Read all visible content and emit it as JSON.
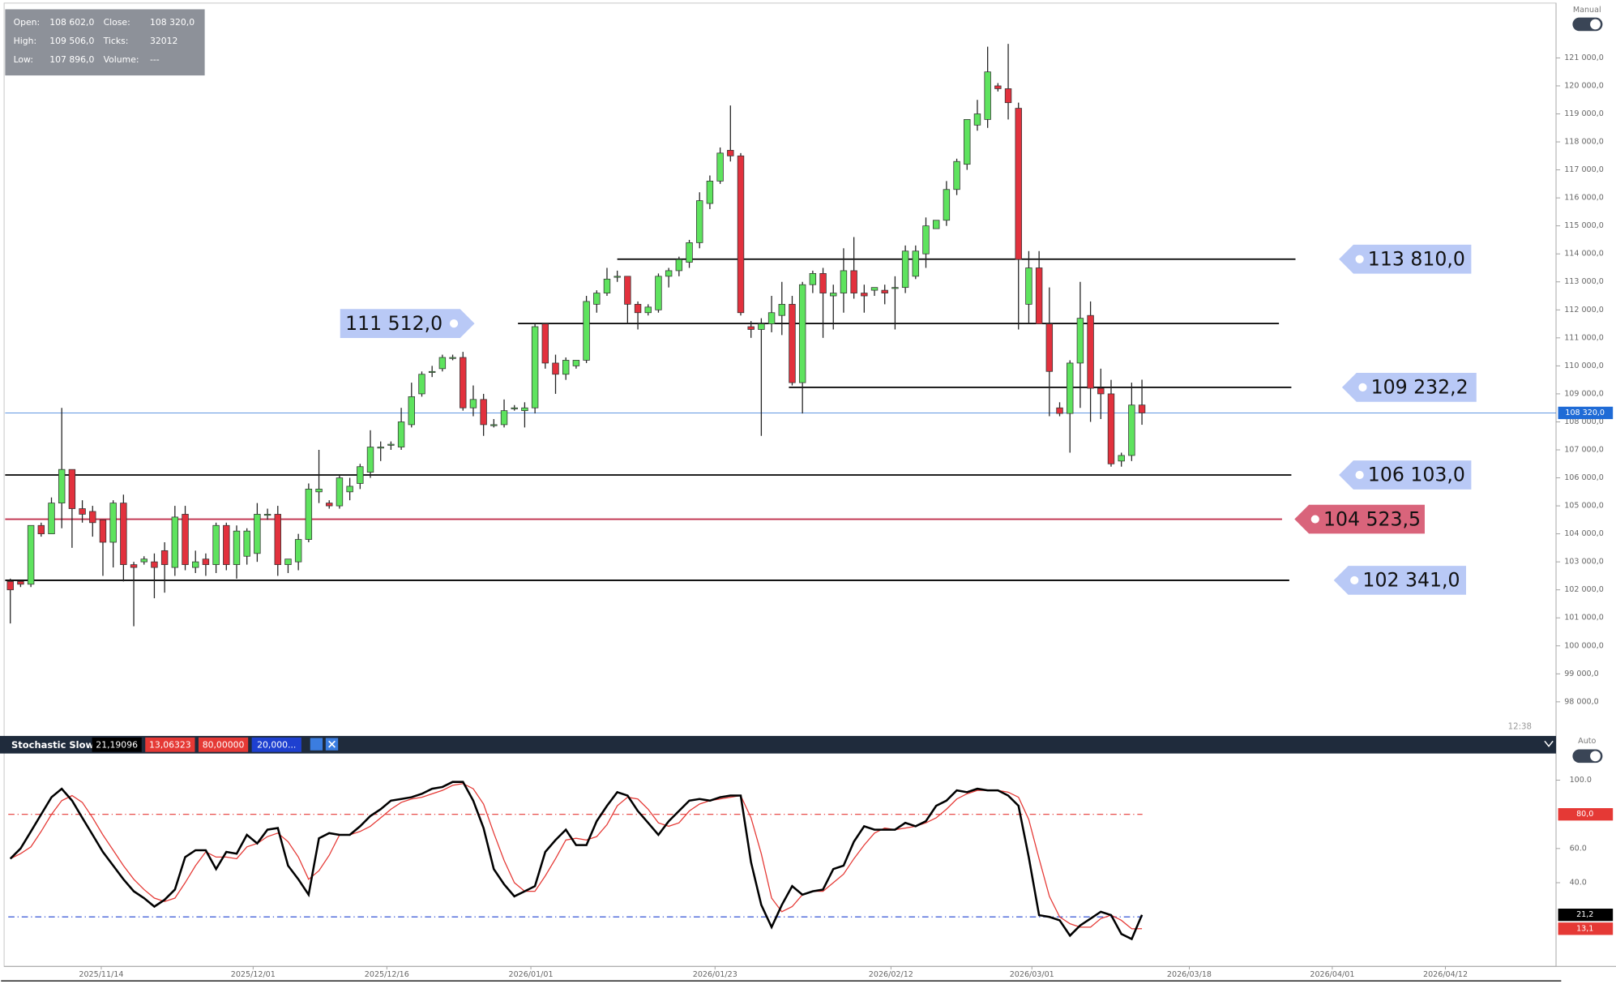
{
  "ui": {
    "manual": "Manual",
    "auto": "Auto",
    "time": "12:38"
  },
  "info": [
    [
      {
        "label": "Open:",
        "value": "108 602,0"
      },
      {
        "label": "Close:",
        "value": "108 320,0"
      }
    ],
    [
      {
        "label": "High:",
        "value": "109 506,0"
      },
      {
        "label": "Ticks:",
        "value": "32012"
      }
    ],
    [
      {
        "label": "Low:",
        "value": "107 896,0"
      },
      {
        "label": "Volume:",
        "value": "---"
      }
    ]
  ],
  "chart_data": [
    {
      "type": "candlestick",
      "up_color": "#5ee35e",
      "down_color": "#e2313d",
      "open": [
        102300,
        102300,
        102200,
        104300,
        104000,
        105100,
        106300,
        104900,
        104800,
        104500,
        103700,
        105100,
        102900,
        103000,
        103000,
        103400,
        102800,
        104700,
        102800,
        103100,
        102900,
        104300,
        102900,
        103200,
        103300,
        104700,
        104700,
        102900,
        103000,
        103800,
        105500,
        105100,
        105000,
        105500,
        105800,
        106200,
        107100,
        107200,
        107100,
        107900,
        109000,
        109800,
        109900,
        110300,
        110300,
        108500,
        108800,
        107900,
        107900,
        108500,
        108400,
        108500,
        111500,
        110100,
        109700,
        110000,
        110200,
        112200,
        112600,
        113200,
        113200,
        112200,
        111900,
        112000,
        113200,
        113400,
        113700,
        114400,
        115800,
        116600,
        117700,
        117500,
        111400,
        111300,
        111500,
        111800,
        112200,
        109400,
        112900,
        113300,
        112500,
        112600,
        113400,
        112600,
        112700,
        112700,
        112800,
        112800,
        113200,
        114000,
        114900,
        115200,
        116300,
        117200,
        118600,
        118800,
        120000,
        119900,
        119200,
        112200,
        113500,
        111500,
        108500,
        108300,
        110100,
        111800,
        109200,
        109000,
        106600,
        106800,
        108602
      ],
      "high": [
        102400,
        102300,
        104300,
        104400,
        105300,
        108500,
        106300,
        105200,
        105000,
        104500,
        105200,
        105400,
        103000,
        103200,
        103300,
        103700,
        105000,
        105000,
        103400,
        103300,
        104400,
        104400,
        104300,
        104200,
        105100,
        104900,
        105000,
        103100,
        104000,
        105800,
        107000,
        105200,
        106100,
        106000,
        106500,
        107700,
        107300,
        107300,
        108500,
        109400,
        109800,
        110000,
        110400,
        110400,
        110500,
        109300,
        109000,
        108100,
        108800,
        108600,
        108700,
        111500,
        111500,
        110400,
        110300,
        110200,
        112500,
        112700,
        113500,
        113400,
        113200,
        112300,
        112200,
        113300,
        113500,
        113900,
        114500,
        116200,
        116800,
        117800,
        119300,
        117600,
        111600,
        111700,
        112500,
        113000,
        112500,
        113000,
        113400,
        113500,
        112900,
        114200,
        114600,
        112900,
        112800,
        112900,
        113200,
        114300,
        114300,
        115300,
        115200,
        116600,
        117400,
        118800,
        119500,
        121400,
        120100,
        121500,
        119400,
        114100,
        114100,
        112800,
        108700,
        110200,
        113000,
        112300,
        109900,
        109500,
        106900,
        109400,
        109506
      ],
      "low": [
        100800,
        102100,
        102100,
        103900,
        104000,
        104200,
        103500,
        104400,
        103900,
        102500,
        102800,
        102300,
        100700,
        102900,
        101700,
        101900,
        102500,
        102700,
        102600,
        102500,
        102600,
        102700,
        102400,
        102900,
        103000,
        104500,
        102500,
        102600,
        102700,
        103700,
        105100,
        104900,
        104900,
        105200,
        105600,
        106000,
        106600,
        107000,
        107000,
        107800,
        108900,
        109600,
        109800,
        110200,
        108400,
        108200,
        107500,
        107800,
        107800,
        108400,
        107800,
        108300,
        109900,
        109000,
        109500,
        109900,
        110100,
        111900,
        112500,
        113000,
        111500,
        111300,
        111800,
        111900,
        112800,
        113200,
        113500,
        114200,
        115600,
        116500,
        117300,
        111800,
        111000,
        107500,
        111200,
        111100,
        109300,
        108300,
        112600,
        111000,
        111300,
        111900,
        112400,
        111900,
        112500,
        112200,
        111300,
        112600,
        113100,
        113500,
        114900,
        115000,
        116100,
        117000,
        118400,
        118500,
        119800,
        118800,
        111300,
        111500,
        111500,
        108200,
        108200,
        106900,
        108500,
        108000,
        108100,
        106400,
        106400,
        106600,
        107896
      ],
      "close": [
        102000,
        102200,
        104300,
        104000,
        105100,
        106300,
        104900,
        104700,
        104400,
        103700,
        105100,
        102900,
        102800,
        103100,
        102800,
        102900,
        104600,
        102900,
        103000,
        102900,
        104300,
        102900,
        104100,
        104100,
        104700,
        104700,
        102900,
        103100,
        103800,
        105600,
        105600,
        105000,
        106000,
        105700,
        106400,
        107100,
        107100,
        107200,
        108000,
        108900,
        109700,
        109800,
        110300,
        110300,
        108500,
        108800,
        107900,
        107900,
        108400,
        108500,
        108500,
        111400,
        110100,
        109700,
        110200,
        110200,
        112300,
        112600,
        113100,
        113200,
        112200,
        111900,
        112100,
        113200,
        113400,
        113800,
        114400,
        115900,
        116600,
        117600,
        117500,
        111900,
        111300,
        111500,
        111900,
        112200,
        109400,
        112900,
        113300,
        112600,
        112600,
        113400,
        112600,
        112500,
        112800,
        112600,
        112800,
        114100,
        114100,
        115000,
        115200,
        116300,
        117300,
        118800,
        119000,
        120500,
        119900,
        119400,
        113800,
        113500,
        111500,
        109800,
        108300,
        110100,
        111700,
        109200,
        109000,
        106500,
        106800,
        108600,
        108320
      ],
      "xlim": [
        -0.5,
        150.25
      ],
      "xticks": [
        {
          "value": 8.84,
          "label": "2025/11/14"
        },
        {
          "value": 23.6,
          "label": "2025/12/01"
        },
        {
          "value": 36.6,
          "label": "2025/12/16"
        },
        {
          "value": 50.6,
          "label": "2026/01/01"
        },
        {
          "value": 68.5,
          "label": "2026/01/23"
        },
        {
          "value": 85.6,
          "label": "2026/02/12"
        },
        {
          "value": 99.3,
          "label": "2026/03/01"
        },
        {
          "value": 114.6,
          "label": "2026/03/18"
        },
        {
          "value": 128.5,
          "label": "2026/04/01"
        },
        {
          "value": 139.5,
          "label": "2026/04/12"
        }
      ],
      "ylim": [
        96856,
        122883
      ],
      "yticks": [
        {
          "value": 98000,
          "label": "98 000,0"
        },
        {
          "value": 99000,
          "label": "99 000,0"
        },
        {
          "value": 100000,
          "label": "100 000,0"
        },
        {
          "value": 101000,
          "label": "101 000,0"
        },
        {
          "value": 102000,
          "label": "102 000,0"
        },
        {
          "value": 103000,
          "label": "103 000,0"
        },
        {
          "value": 104000,
          "label": "104 000,0"
        },
        {
          "value": 105000,
          "label": "105 000,0"
        },
        {
          "value": 106000,
          "label": "106 000,0"
        },
        {
          "value": 107000,
          "label": "107 000,0"
        },
        {
          "value": 108000,
          "label": "108 000,0"
        },
        {
          "value": 109000,
          "label": "109 000,0"
        },
        {
          "value": 110000,
          "label": "110 000,0"
        },
        {
          "value": 111000,
          "label": "111 000,0"
        },
        {
          "value": 112000,
          "label": "112 000,0"
        },
        {
          "value": 113000,
          "label": "113 000,0"
        },
        {
          "value": 114000,
          "label": "114 000,0"
        },
        {
          "value": 115000,
          "label": "115 000,0"
        },
        {
          "value": 116000,
          "label": "116 000,0"
        },
        {
          "value": 117000,
          "label": "117 000,0"
        },
        {
          "value": 118000,
          "label": "118 000,0"
        },
        {
          "value": 119000,
          "label": "119 000,0"
        },
        {
          "value": 120000,
          "label": "120 000,0"
        },
        {
          "value": 121000,
          "label": "121 000,0"
        }
      ],
      "current_price": {
        "value": 108320,
        "label": "108 320,0",
        "color": "#1f6bd6"
      },
      "levels": [
        {
          "value": 113810,
          "label": "113 810,0",
          "color": "#000000",
          "label_color": "#b9c9f6"
        },
        {
          "value": 111512,
          "label": "111 512,0",
          "color": "#000000",
          "label_color": "#b9c9f6"
        },
        {
          "value": 109232.2,
          "label": "109 232,2",
          "color": "#000000",
          "label_color": "#b9c9f6"
        },
        {
          "value": 106103,
          "label": "106 103,0",
          "color": "#000000",
          "label_color": "#b9c9f6"
        },
        {
          "value": 104523.5,
          "label": "104 523,5",
          "color": "#c0304c",
          "label_color": "#d9647b"
        },
        {
          "value": 102341,
          "label": "102 341,0",
          "color": "#000000",
          "label_color": "#b9c9f6"
        }
      ]
    },
    {
      "type": "stochastic",
      "title": "Stochastic Slow",
      "ylim": [
        -9,
        115
      ],
      "yticks": [
        {
          "value": 40,
          "label": "40.0"
        },
        {
          "value": 60,
          "label": "60.0"
        },
        {
          "value": 100,
          "label": "100.0"
        }
      ],
      "series": [
        {
          "color": "#000000",
          "header_label": "21,19096",
          "axis_label": "21,2",
          "values": [
            54,
            60,
            70,
            80,
            90,
            95,
            88,
            78,
            68,
            58,
            50,
            42,
            35,
            31,
            26,
            30,
            36,
            55,
            59,
            59,
            48,
            58,
            57,
            68,
            63,
            71,
            72,
            50,
            42,
            33,
            66,
            69,
            68,
            68,
            73,
            79,
            83,
            88,
            89,
            90,
            92,
            95,
            96,
            99,
            99,
            88,
            72,
            48,
            39,
            32,
            35,
            38,
            58,
            65,
            71,
            62,
            62,
            76,
            85,
            93,
            91,
            82,
            75,
            68,
            76,
            82,
            88,
            89,
            88,
            90,
            91,
            91,
            52,
            27,
            14,
            27,
            38,
            33,
            35,
            36,
            48,
            50,
            64,
            73,
            71,
            71,
            71,
            75,
            73,
            76,
            85,
            88,
            94,
            93,
            95,
            94,
            94,
            91,
            85,
            55,
            21,
            20,
            18,
            9,
            15,
            19,
            23,
            21,
            10,
            7,
            21.19096
          ]
        },
        {
          "color": "#e53935",
          "header_label": "13,06323",
          "axis_label": "13,1",
          "values": [
            54,
            57,
            61,
            70,
            80,
            88,
            91,
            87,
            78,
            68,
            59,
            50,
            42,
            36,
            31,
            29,
            31,
            40,
            50,
            58,
            55,
            55,
            54,
            61,
            63,
            67,
            69,
            64,
            55,
            42,
            47,
            56,
            68,
            68,
            70,
            73,
            78,
            83,
            87,
            89,
            90,
            92,
            94,
            97,
            98,
            95,
            86,
            69,
            53,
            40,
            35,
            35,
            44,
            54,
            65,
            66,
            65,
            67,
            74,
            85,
            90,
            89,
            83,
            75,
            73,
            75,
            82,
            86,
            88,
            89,
            90,
            91,
            78,
            57,
            31,
            23,
            26,
            33,
            35,
            35,
            40,
            45,
            54,
            62,
            69,
            72,
            71,
            72,
            73,
            75,
            78,
            83,
            89,
            92,
            94,
            94,
            94,
            93,
            90,
            77,
            54,
            32,
            20,
            16,
            14,
            14,
            19,
            21,
            18,
            13,
            13.06323
          ]
        }
      ],
      "levels": [
        {
          "value": 80,
          "color": "#e53935",
          "header_label": "80,00000",
          "axis_label": "80,0"
        },
        {
          "value": 20,
          "color": "#1e40d0",
          "header_label": "20,000..."
        }
      ]
    }
  ]
}
